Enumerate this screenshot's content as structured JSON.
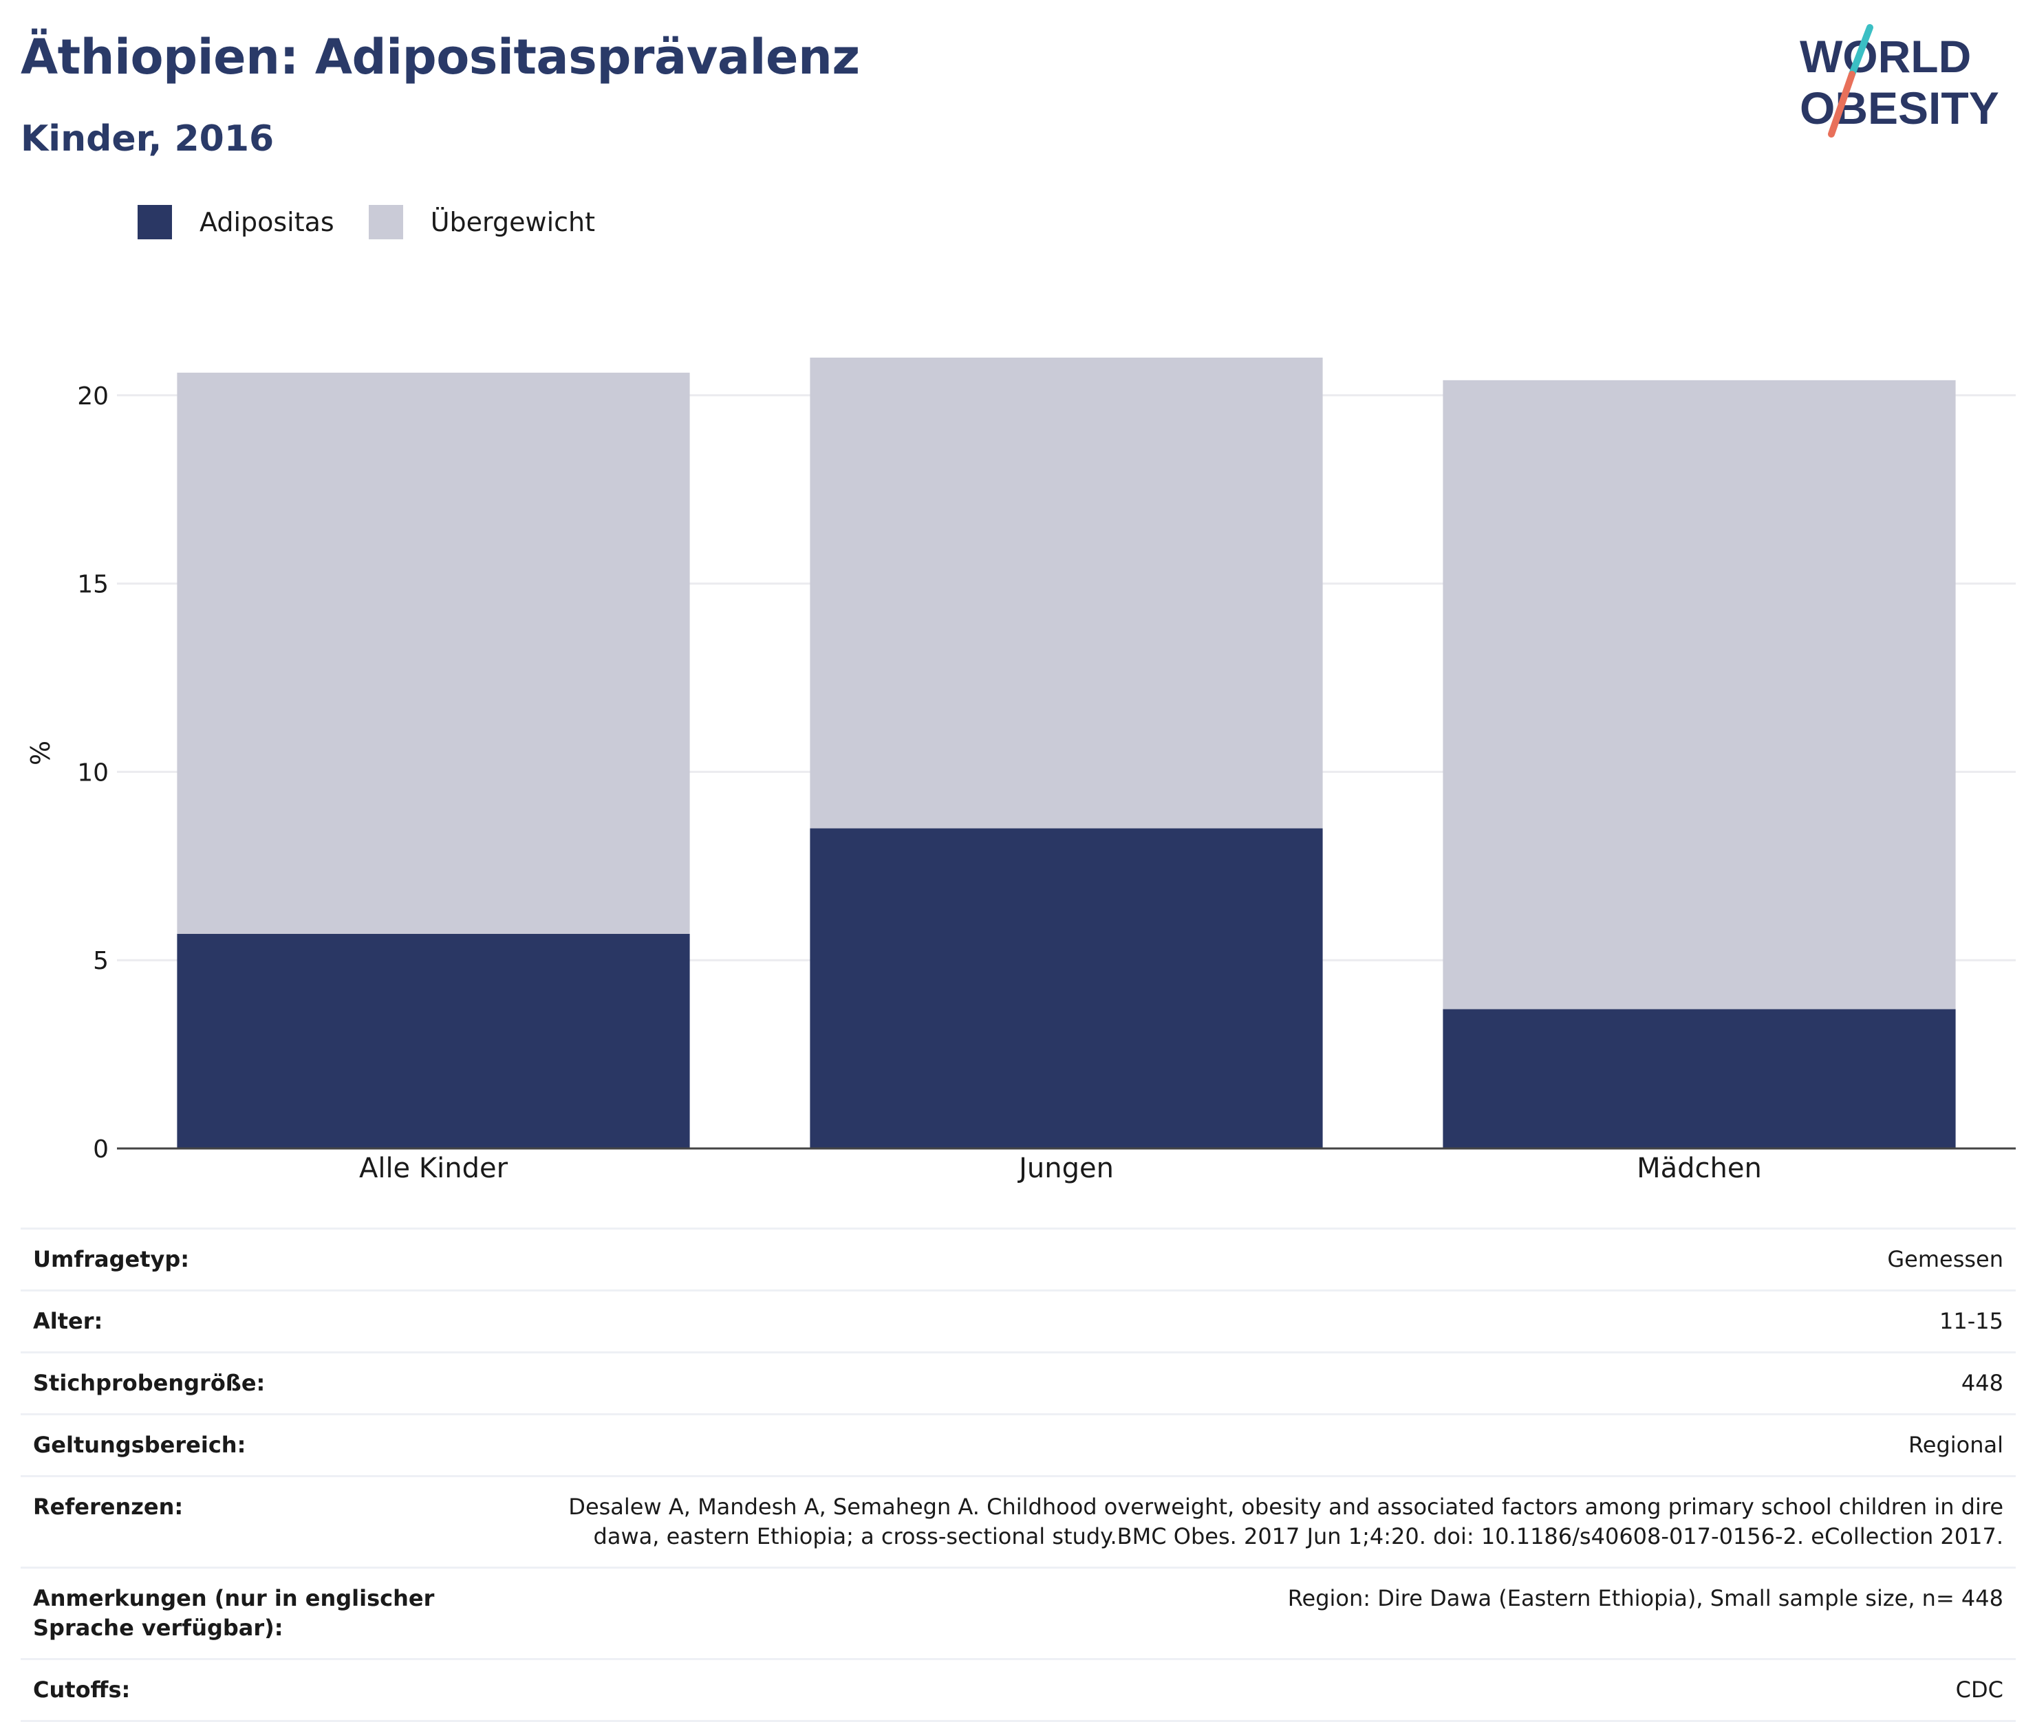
{
  "header": {
    "title": "Äthiopien: Adipositasprävalenz",
    "subtitle": "Kinder, 2016"
  },
  "logo": {
    "line1": "WORLD",
    "line2": "OBESITY",
    "slash_color_top": "#3bbfc4",
    "slash_color_bottom": "#e8705a"
  },
  "colors": {
    "brand_navy": "#2a3764",
    "overweight_grey": "#cacbd7"
  },
  "chart_data": {
    "type": "bar",
    "stacked": true,
    "categories": [
      "Alle Kinder",
      "Jungen",
      "Mädchen"
    ],
    "series": [
      {
        "name": "Adipositas",
        "values": [
          5.7,
          8.5,
          3.7
        ],
        "color": "#2a3764"
      },
      {
        "name": "Übergewicht",
        "values": [
          14.9,
          12.5,
          16.7
        ],
        "color": "#cacbd7"
      }
    ],
    "xlabel": "",
    "ylabel": "%",
    "ylim": [
      0,
      21
    ],
    "yticks": [
      0,
      5,
      10,
      15,
      20
    ],
    "grid": true,
    "legend_position": "top-left"
  },
  "info": [
    {
      "key": "Umfragetyp:",
      "value": "Gemessen"
    },
    {
      "key": "Alter:",
      "value": "11-15"
    },
    {
      "key": "Stichprobengröße:",
      "value": "448"
    },
    {
      "key": "Geltungsbereich:",
      "value": "Regional"
    },
    {
      "key": "Referenzen:",
      "value": "Desalew A, Mandesh A, Semahegn A. Childhood overweight, obesity and associated factors among primary school children in dire dawa, eastern Ethiopia; a cross-sectional study.BMC Obes. 2017 Jun 1;4:20. doi: 10.1186/s40608-017-0156-2. eCollection 2017."
    },
    {
      "key": "Anmerkungen (nur in englischer Sprache verfügbar):",
      "value": "Region: Dire Dawa (Eastern Ethiopia), Small sample size, n= 448"
    },
    {
      "key": "Cutoffs:",
      "value": "CDC"
    }
  ]
}
